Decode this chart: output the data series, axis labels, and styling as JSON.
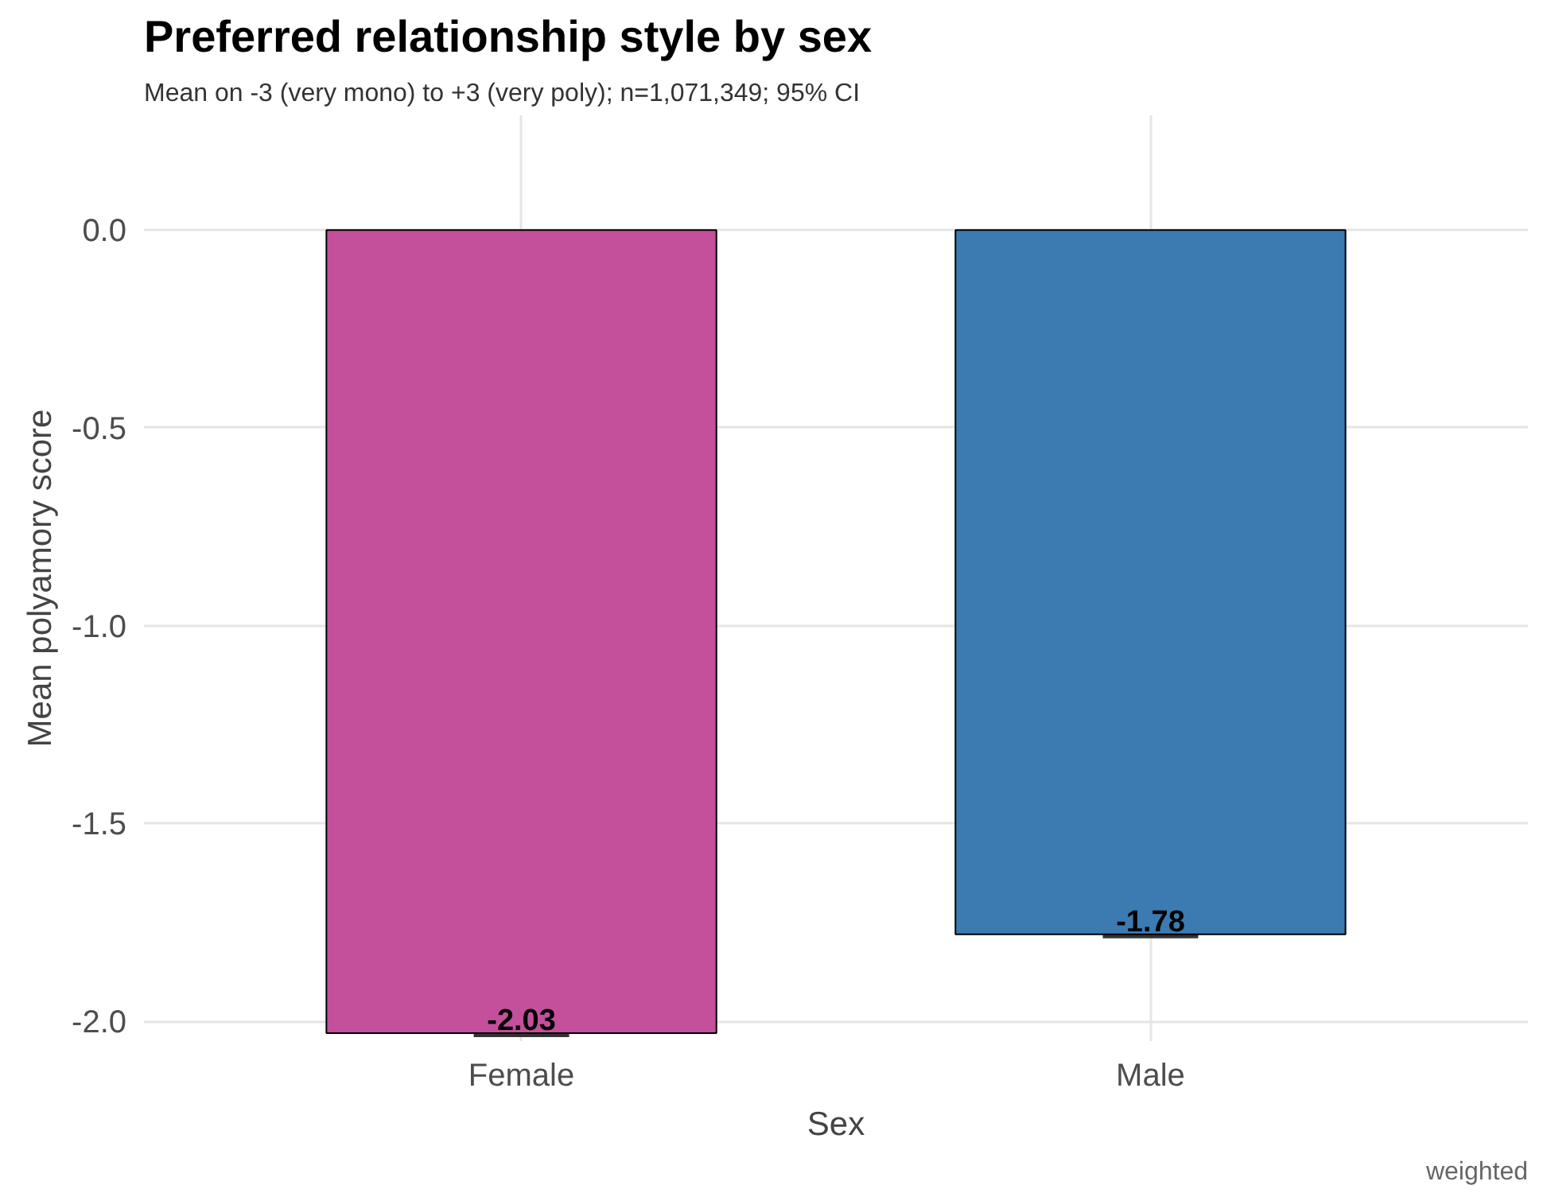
{
  "chart_data": {
    "type": "bar",
    "title": "Preferred relationship style by sex",
    "subtitle": "Mean on -3 (very mono) to +3 (very poly); n=1,071,349; 95% CI",
    "xlabel": "Sex",
    "ylabel": "Mean polyamory score",
    "categories": [
      "Female",
      "Male"
    ],
    "values": [
      -2.03,
      -1.78
    ],
    "colors": [
      "#c44f9b",
      "#3b7bb2"
    ],
    "errors": [
      0.004,
      0.004
    ],
    "data_labels": true,
    "ylim": [
      -2.05,
      0.29
    ],
    "yticks": [
      {
        "value": 0,
        "label": "0.0"
      },
      {
        "value": -0.5,
        "label": "-0.5"
      },
      {
        "value": -1,
        "label": "-1.0"
      },
      {
        "value": -1.5,
        "label": "-1.5"
      },
      {
        "value": -2,
        "label": "-2.0"
      }
    ],
    "grid": true,
    "annotations": [
      "weighted"
    ]
  }
}
